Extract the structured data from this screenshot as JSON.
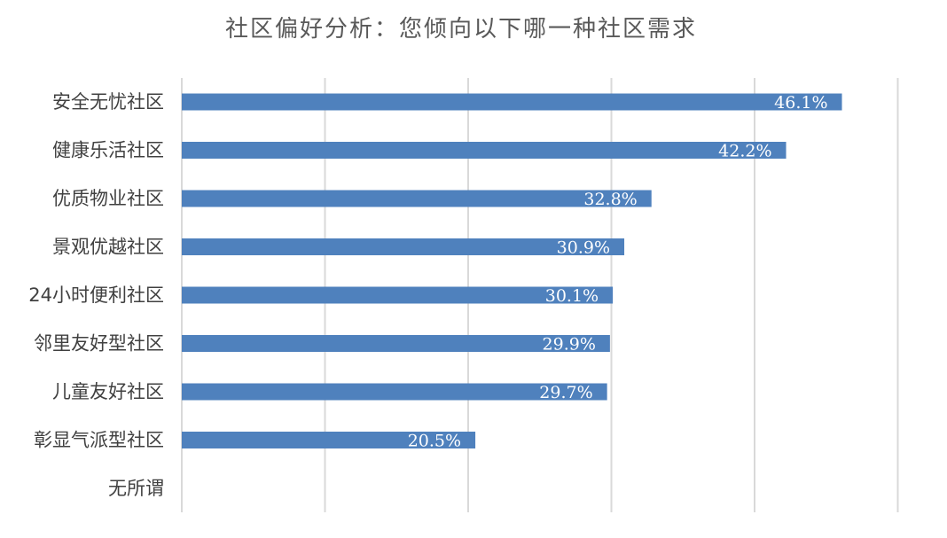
{
  "chart_data": {
    "type": "bar",
    "orientation": "horizontal",
    "title": "社区偏好分析：您倾向以下哪一种社区需求",
    "categories": [
      "安全无忧社区",
      "健康乐活社区",
      "优质物业社区",
      "景观优越社区",
      "24小时便利社区",
      "邻里友好型社区",
      "儿童友好社区",
      "彰显气派型社区",
      "无所谓"
    ],
    "values": [
      46.1,
      42.2,
      32.8,
      30.9,
      30.1,
      29.9,
      29.7,
      20.5,
      null
    ],
    "data_labels": [
      "46.1%",
      "42.2%",
      "32.8%",
      "30.9%",
      "30.1%",
      "29.9%",
      "29.7%",
      "20.5%",
      ""
    ],
    "xlim": [
      0,
      50
    ],
    "x_gridline_step": 10,
    "grid": true,
    "bar_color": "#4F81BD",
    "gridline_color": "#D9D9D9",
    "legend": "none"
  }
}
